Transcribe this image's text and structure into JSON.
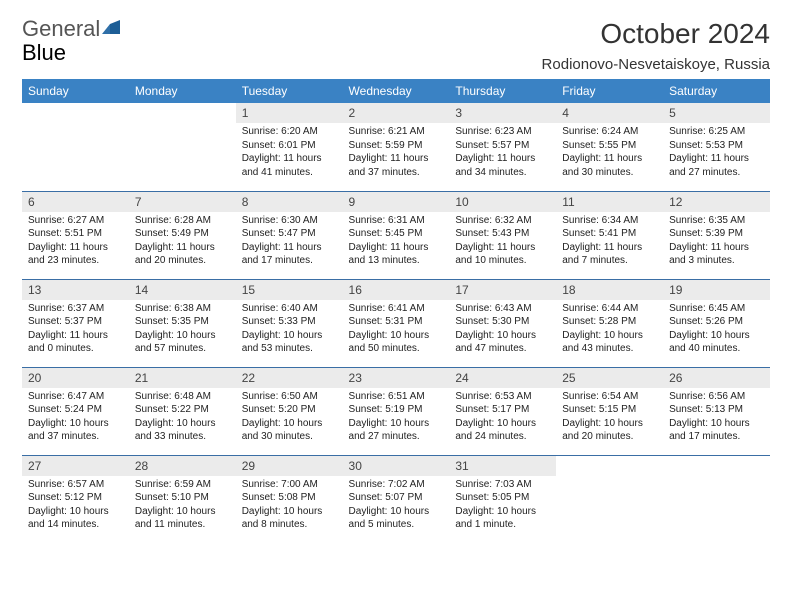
{
  "logo": {
    "part1": "General",
    "part2": "Blue"
  },
  "header": {
    "title": "October 2024",
    "location": "Rodionovo-Nesvetaiskoye, Russia"
  },
  "colors": {
    "header_bg": "#3a82c4",
    "rule": "#3a6ea5",
    "daybar_bg": "#ebebeb"
  },
  "dayNames": [
    "Sunday",
    "Monday",
    "Tuesday",
    "Wednesday",
    "Thursday",
    "Friday",
    "Saturday"
  ],
  "weeks": [
    [
      null,
      null,
      {
        "n": "1",
        "sr": "6:20 AM",
        "ss": "6:01 PM",
        "dl": "11 hours and 41 minutes."
      },
      {
        "n": "2",
        "sr": "6:21 AM",
        "ss": "5:59 PM",
        "dl": "11 hours and 37 minutes."
      },
      {
        "n": "3",
        "sr": "6:23 AM",
        "ss": "5:57 PM",
        "dl": "11 hours and 34 minutes."
      },
      {
        "n": "4",
        "sr": "6:24 AM",
        "ss": "5:55 PM",
        "dl": "11 hours and 30 minutes."
      },
      {
        "n": "5",
        "sr": "6:25 AM",
        "ss": "5:53 PM",
        "dl": "11 hours and 27 minutes."
      }
    ],
    [
      {
        "n": "6",
        "sr": "6:27 AM",
        "ss": "5:51 PM",
        "dl": "11 hours and 23 minutes."
      },
      {
        "n": "7",
        "sr": "6:28 AM",
        "ss": "5:49 PM",
        "dl": "11 hours and 20 minutes."
      },
      {
        "n": "8",
        "sr": "6:30 AM",
        "ss": "5:47 PM",
        "dl": "11 hours and 17 minutes."
      },
      {
        "n": "9",
        "sr": "6:31 AM",
        "ss": "5:45 PM",
        "dl": "11 hours and 13 minutes."
      },
      {
        "n": "10",
        "sr": "6:32 AM",
        "ss": "5:43 PM",
        "dl": "11 hours and 10 minutes."
      },
      {
        "n": "11",
        "sr": "6:34 AM",
        "ss": "5:41 PM",
        "dl": "11 hours and 7 minutes."
      },
      {
        "n": "12",
        "sr": "6:35 AM",
        "ss": "5:39 PM",
        "dl": "11 hours and 3 minutes."
      }
    ],
    [
      {
        "n": "13",
        "sr": "6:37 AM",
        "ss": "5:37 PM",
        "dl": "11 hours and 0 minutes."
      },
      {
        "n": "14",
        "sr": "6:38 AM",
        "ss": "5:35 PM",
        "dl": "10 hours and 57 minutes."
      },
      {
        "n": "15",
        "sr": "6:40 AM",
        "ss": "5:33 PM",
        "dl": "10 hours and 53 minutes."
      },
      {
        "n": "16",
        "sr": "6:41 AM",
        "ss": "5:31 PM",
        "dl": "10 hours and 50 minutes."
      },
      {
        "n": "17",
        "sr": "6:43 AM",
        "ss": "5:30 PM",
        "dl": "10 hours and 47 minutes."
      },
      {
        "n": "18",
        "sr": "6:44 AM",
        "ss": "5:28 PM",
        "dl": "10 hours and 43 minutes."
      },
      {
        "n": "19",
        "sr": "6:45 AM",
        "ss": "5:26 PM",
        "dl": "10 hours and 40 minutes."
      }
    ],
    [
      {
        "n": "20",
        "sr": "6:47 AM",
        "ss": "5:24 PM",
        "dl": "10 hours and 37 minutes."
      },
      {
        "n": "21",
        "sr": "6:48 AM",
        "ss": "5:22 PM",
        "dl": "10 hours and 33 minutes."
      },
      {
        "n": "22",
        "sr": "6:50 AM",
        "ss": "5:20 PM",
        "dl": "10 hours and 30 minutes."
      },
      {
        "n": "23",
        "sr": "6:51 AM",
        "ss": "5:19 PM",
        "dl": "10 hours and 27 minutes."
      },
      {
        "n": "24",
        "sr": "6:53 AM",
        "ss": "5:17 PM",
        "dl": "10 hours and 24 minutes."
      },
      {
        "n": "25",
        "sr": "6:54 AM",
        "ss": "5:15 PM",
        "dl": "10 hours and 20 minutes."
      },
      {
        "n": "26",
        "sr": "6:56 AM",
        "ss": "5:13 PM",
        "dl": "10 hours and 17 minutes."
      }
    ],
    [
      {
        "n": "27",
        "sr": "6:57 AM",
        "ss": "5:12 PM",
        "dl": "10 hours and 14 minutes."
      },
      {
        "n": "28",
        "sr": "6:59 AM",
        "ss": "5:10 PM",
        "dl": "10 hours and 11 minutes."
      },
      {
        "n": "29",
        "sr": "7:00 AM",
        "ss": "5:08 PM",
        "dl": "10 hours and 8 minutes."
      },
      {
        "n": "30",
        "sr": "7:02 AM",
        "ss": "5:07 PM",
        "dl": "10 hours and 5 minutes."
      },
      {
        "n": "31",
        "sr": "7:03 AM",
        "ss": "5:05 PM",
        "dl": "10 hours and 1 minute."
      },
      null,
      null
    ]
  ],
  "labels": {
    "sunrise": "Sunrise: ",
    "sunset": "Sunset: ",
    "daylight": "Daylight: "
  }
}
